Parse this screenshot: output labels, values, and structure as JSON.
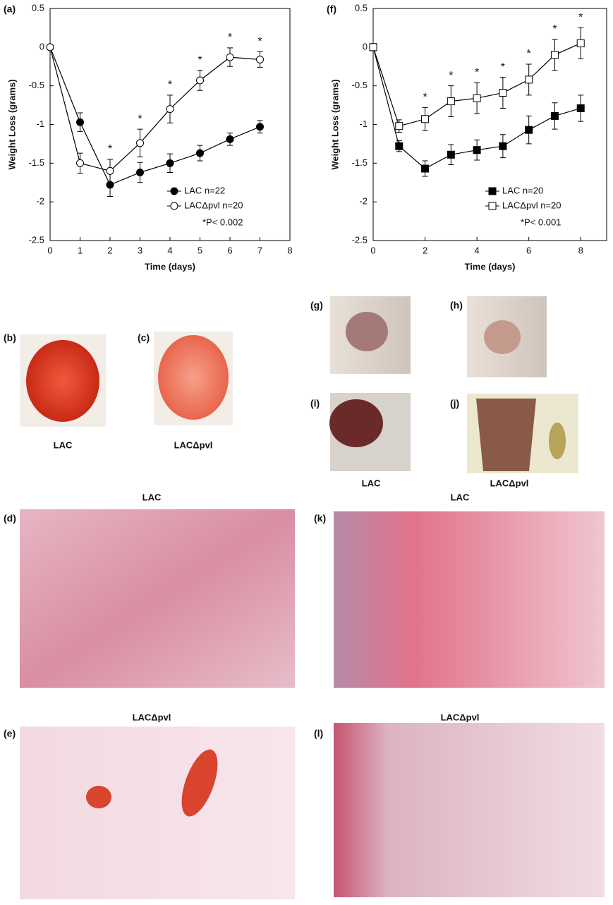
{
  "chart_data": [
    {
      "type": "line",
      "panel_label": "(a)",
      "x_label": "Time (days)",
      "y_label": "Weight Loss (grams)",
      "xlim": [
        0,
        8
      ],
      "xticks": [
        0,
        1,
        2,
        3,
        4,
        5,
        6,
        7,
        8
      ],
      "ylim": [
        -2.5,
        0.5
      ],
      "yticks": [
        0.5,
        0,
        -0.5,
        -1,
        -1.5,
        -2,
        -2.5
      ],
      "x": [
        0,
        1,
        2,
        3,
        4,
        5,
        6,
        7
      ],
      "series": [
        {
          "name": "LAC n=22",
          "marker": "circle",
          "filled": true,
          "color": "#000000",
          "values": [
            0,
            -0.97,
            -1.78,
            -1.62,
            -1.5,
            -1.37,
            -1.19,
            -1.03
          ],
          "errors": [
            null,
            0.12,
            0.15,
            0.13,
            0.12,
            0.1,
            0.08,
            0.08
          ]
        },
        {
          "name": "LACΔpvl n=20",
          "marker": "circle",
          "filled": false,
          "color": "#000000",
          "values": [
            0,
            -1.5,
            -1.6,
            -1.24,
            -0.8,
            -0.43,
            -0.13,
            -0.16
          ],
          "errors": [
            null,
            0.13,
            0.15,
            0.18,
            0.18,
            0.13,
            0.12,
            0.1
          ]
        }
      ],
      "significance_label": "*",
      "significant_x": [
        2,
        3,
        4,
        5,
        6,
        7
      ],
      "annotation": "*P< 0.002"
    },
    {
      "type": "line",
      "panel_label": "(f)",
      "x_label": "Time (days)",
      "y_label": "Weight Loss (grams)",
      "xlim": [
        0,
        9
      ],
      "xticks": [
        0,
        2,
        4,
        6,
        8
      ],
      "ylim": [
        -2.5,
        0.5
      ],
      "yticks": [
        0.5,
        0,
        -0.5,
        -1,
        -1.5,
        -2,
        -2.5
      ],
      "x": [
        0,
        1,
        2,
        3,
        4,
        5,
        6,
        7,
        8
      ],
      "series": [
        {
          "name": "LAC n=20",
          "marker": "square",
          "filled": true,
          "color": "#000000",
          "values": [
            0,
            -1.28,
            -1.57,
            -1.39,
            -1.33,
            -1.28,
            -1.07,
            -0.89,
            -0.79
          ],
          "errors": [
            null,
            0.07,
            0.1,
            0.13,
            0.13,
            0.15,
            0.18,
            0.17,
            0.17
          ]
        },
        {
          "name": "LACΔpvl n=20",
          "marker": "square",
          "filled": false,
          "color": "#000000",
          "values": [
            0,
            -1.02,
            -0.93,
            -0.7,
            -0.66,
            -0.59,
            -0.42,
            -0.1,
            0.05
          ],
          "errors": [
            null,
            0.08,
            0.15,
            0.2,
            0.2,
            0.2,
            0.2,
            0.2,
            0.2
          ]
        }
      ],
      "significance_label": "*",
      "significant_x": [
        2,
        3,
        4,
        5,
        6,
        7,
        8
      ],
      "annotation": "*P< 0.001"
    }
  ],
  "panels": {
    "b": {
      "label": "(b)",
      "caption": "LAC"
    },
    "c": {
      "label": "(c)",
      "caption": "LACΔpvl"
    },
    "g": {
      "label": "(g)"
    },
    "h": {
      "label": "(h)"
    },
    "i": {
      "label": "(i)",
      "caption": "LAC"
    },
    "j": {
      "label": "(j)",
      "caption": "LACΔpvl"
    },
    "d": {
      "label": "(d)",
      "caption": "LAC"
    },
    "e": {
      "label": "(e)",
      "caption": "LACΔpvl"
    },
    "k": {
      "label": "(k)",
      "caption": "LAC"
    },
    "l": {
      "label": "(l)",
      "caption": "LACΔpvl"
    }
  }
}
